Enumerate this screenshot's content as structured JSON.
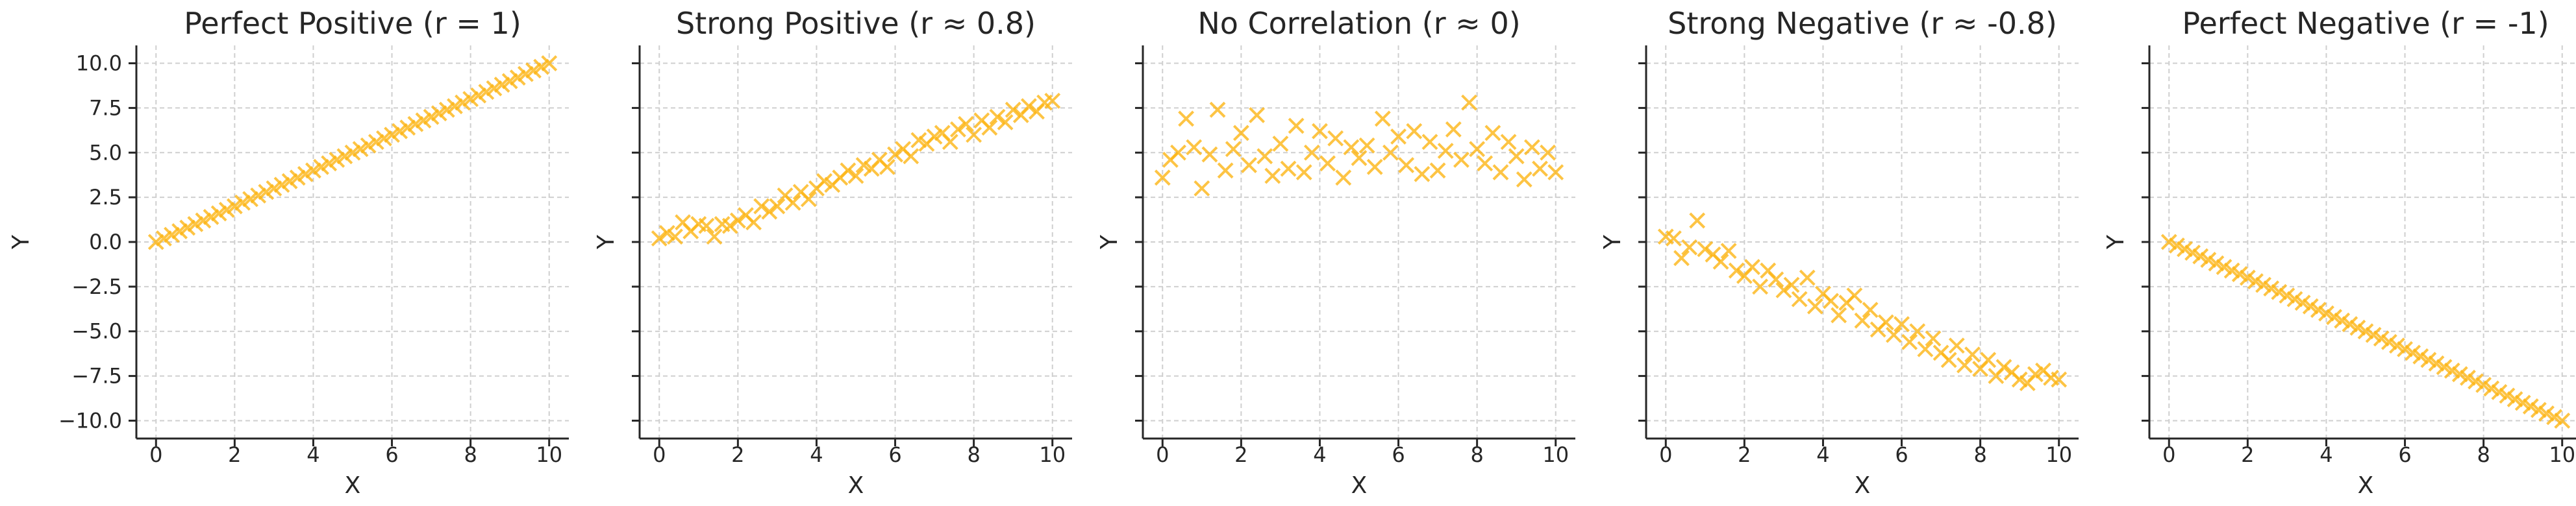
{
  "chart_data": [
    {
      "type": "scatter",
      "title": "Perfect Positive (r = 1)",
      "xlabel": "X",
      "ylabel": "Y",
      "xlim": [
        -0.5,
        10.5
      ],
      "ylim": [
        -11,
        11
      ],
      "xticks": [
        "0",
        "2",
        "4",
        "6",
        "8",
        "10"
      ],
      "yticks": [
        "10.0",
        "7.5",
        "5.0",
        "2.5",
        "0.0",
        "−2.5",
        "−5.0",
        "−7.5",
        "−10.0"
      ],
      "show_yticklabels": true,
      "marker": "x",
      "color": "#FDB515",
      "grid": true,
      "x": [
        0,
        0.2,
        0.4,
        0.6,
        0.8,
        1.0,
        1.2,
        1.4,
        1.6,
        1.8,
        2.0,
        2.2,
        2.4,
        2.6,
        2.8,
        3.0,
        3.2,
        3.4,
        3.6,
        3.8,
        4.0,
        4.2,
        4.4,
        4.6,
        4.8,
        5.0,
        5.2,
        5.4,
        5.6,
        5.8,
        6.0,
        6.2,
        6.4,
        6.6,
        6.8,
        7.0,
        7.2,
        7.4,
        7.6,
        7.8,
        8.0,
        8.2,
        8.4,
        8.6,
        8.8,
        9.0,
        9.2,
        9.4,
        9.6,
        9.8,
        10.0
      ],
      "y": [
        0,
        0.2,
        0.4,
        0.6,
        0.8,
        1.0,
        1.2,
        1.4,
        1.6,
        1.8,
        2.0,
        2.2,
        2.4,
        2.6,
        2.8,
        3.0,
        3.2,
        3.4,
        3.6,
        3.8,
        4.0,
        4.2,
        4.4,
        4.6,
        4.8,
        5.0,
        5.2,
        5.4,
        5.6,
        5.8,
        6.0,
        6.2,
        6.4,
        6.6,
        6.8,
        7.0,
        7.2,
        7.4,
        7.6,
        7.8,
        8.0,
        8.2,
        8.4,
        8.6,
        8.8,
        9.0,
        9.2,
        9.4,
        9.6,
        9.8,
        10.0
      ]
    },
    {
      "type": "scatter",
      "title": "Strong Positive (r ≈ 0.8)",
      "xlabel": "X",
      "ylabel": "Y",
      "xlim": [
        -0.5,
        10.5
      ],
      "ylim": [
        -11,
        11
      ],
      "xticks": [
        "0",
        "2",
        "4",
        "6",
        "8",
        "10"
      ],
      "yticks": [],
      "show_yticklabels": false,
      "marker": "x",
      "color": "#FDB515",
      "grid": true,
      "x": [
        0,
        0.2,
        0.4,
        0.6,
        0.8,
        1.0,
        1.2,
        1.4,
        1.6,
        1.8,
        2.0,
        2.2,
        2.4,
        2.6,
        2.8,
        3.0,
        3.2,
        3.4,
        3.6,
        3.8,
        4.0,
        4.2,
        4.4,
        4.6,
        4.8,
        5.0,
        5.2,
        5.4,
        5.6,
        5.8,
        6.0,
        6.2,
        6.4,
        6.6,
        6.8,
        7.0,
        7.2,
        7.4,
        7.6,
        7.8,
        8.0,
        8.2,
        8.4,
        8.6,
        8.8,
        9.0,
        9.2,
        9.4,
        9.6,
        9.8,
        10.0
      ],
      "y": [
        0.2,
        0.5,
        0.3,
        1.1,
        0.6,
        1.0,
        0.9,
        0.3,
        1.0,
        0.9,
        1.2,
        1.5,
        1.1,
        2.0,
        1.7,
        2.0,
        2.6,
        2.2,
        2.8,
        2.4,
        3.0,
        3.4,
        3.2,
        3.6,
        4.0,
        3.7,
        4.3,
        4.1,
        4.6,
        4.2,
        4.9,
        5.2,
        4.8,
        5.7,
        5.5,
        5.9,
        6.1,
        5.6,
        6.3,
        6.6,
        6.0,
        6.8,
        6.4,
        7.0,
        6.7,
        7.4,
        7.1,
        7.6,
        7.3,
        7.8,
        7.9
      ]
    },
    {
      "type": "scatter",
      "title": "No Correlation (r ≈ 0)",
      "xlabel": "X",
      "ylabel": "Y",
      "xlim": [
        -0.5,
        10.5
      ],
      "ylim": [
        -11,
        11
      ],
      "xticks": [
        "0",
        "2",
        "4",
        "6",
        "8",
        "10"
      ],
      "yticks": [],
      "show_yticklabels": false,
      "marker": "x",
      "color": "#FDB515",
      "grid": true,
      "x": [
        0,
        0.2,
        0.4,
        0.6,
        0.8,
        1.0,
        1.2,
        1.4,
        1.6,
        1.8,
        2.0,
        2.2,
        2.4,
        2.6,
        2.8,
        3.0,
        3.2,
        3.4,
        3.6,
        3.8,
        4.0,
        4.2,
        4.4,
        4.6,
        4.8,
        5.0,
        5.2,
        5.4,
        5.6,
        5.8,
        6.0,
        6.2,
        6.4,
        6.6,
        6.8,
        7.0,
        7.2,
        7.4,
        7.6,
        7.8,
        8.0,
        8.2,
        8.4,
        8.6,
        8.8,
        9.0,
        9.2,
        9.4,
        9.6,
        9.8,
        10.0
      ],
      "y": [
        3.6,
        4.6,
        5.0,
        6.9,
        5.3,
        3.0,
        4.9,
        7.4,
        4.0,
        5.2,
        6.1,
        4.3,
        7.1,
        4.8,
        3.7,
        5.5,
        4.1,
        6.5,
        3.9,
        5.0,
        6.2,
        4.4,
        5.8,
        3.6,
        5.3,
        4.7,
        5.4,
        4.2,
        6.9,
        5.0,
        5.9,
        4.3,
        6.2,
        3.8,
        5.6,
        4.0,
        5.1,
        6.3,
        4.6,
        7.8,
        5.2,
        4.4,
        6.1,
        3.9,
        5.6,
        4.8,
        3.5,
        5.3,
        4.1,
        5.0,
        3.9
      ]
    },
    {
      "type": "scatter",
      "title": "Strong Negative (r ≈ -0.8)",
      "xlabel": "X",
      "ylabel": "Y",
      "xlim": [
        -0.5,
        10.5
      ],
      "ylim": [
        -11,
        11
      ],
      "xticks": [
        "0",
        "2",
        "4",
        "6",
        "8",
        "10"
      ],
      "yticks": [],
      "show_yticklabels": false,
      "marker": "x",
      "color": "#FDB515",
      "grid": true,
      "x": [
        0,
        0.2,
        0.4,
        0.6,
        0.8,
        1.0,
        1.2,
        1.4,
        1.6,
        1.8,
        2.0,
        2.2,
        2.4,
        2.6,
        2.8,
        3.0,
        3.2,
        3.4,
        3.6,
        3.8,
        4.0,
        4.2,
        4.4,
        4.6,
        4.8,
        5.0,
        5.2,
        5.4,
        5.6,
        5.8,
        6.0,
        6.2,
        6.4,
        6.6,
        6.8,
        7.0,
        7.2,
        7.4,
        7.6,
        7.8,
        8.0,
        8.2,
        8.4,
        8.6,
        8.8,
        9.0,
        9.2,
        9.4,
        9.6,
        9.8,
        10.0
      ],
      "y": [
        0.3,
        0.2,
        -0.9,
        -0.3,
        1.2,
        -0.4,
        -0.7,
        -1.1,
        -0.5,
        -1.6,
        -1.9,
        -1.4,
        -2.5,
        -1.6,
        -2.1,
        -2.7,
        -2.4,
        -3.2,
        -2.0,
        -3.6,
        -2.9,
        -3.3,
        -4.1,
        -3.4,
        -3.0,
        -4.4,
        -3.8,
        -4.9,
        -4.5,
        -5.2,
        -4.6,
        -5.6,
        -5.0,
        -6.0,
        -5.4,
        -6.2,
        -6.6,
        -5.8,
        -6.9,
        -6.3,
        -7.1,
        -6.6,
        -7.5,
        -7.0,
        -7.3,
        -7.7,
        -7.9,
        -7.4,
        -7.2,
        -7.6,
        -7.7
      ]
    },
    {
      "type": "scatter",
      "title": "Perfect Negative (r = -1)",
      "xlabel": "X",
      "ylabel": "Y",
      "xlim": [
        -0.5,
        10.5
      ],
      "ylim": [
        -11,
        11
      ],
      "xticks": [
        "0",
        "2",
        "4",
        "6",
        "8",
        "10"
      ],
      "yticks": [],
      "show_yticklabels": false,
      "marker": "x",
      "color": "#FDB515",
      "grid": true,
      "x": [
        0,
        0.2,
        0.4,
        0.6,
        0.8,
        1.0,
        1.2,
        1.4,
        1.6,
        1.8,
        2.0,
        2.2,
        2.4,
        2.6,
        2.8,
        3.0,
        3.2,
        3.4,
        3.6,
        3.8,
        4.0,
        4.2,
        4.4,
        4.6,
        4.8,
        5.0,
        5.2,
        5.4,
        5.6,
        5.8,
        6.0,
        6.2,
        6.4,
        6.6,
        6.8,
        7.0,
        7.2,
        7.4,
        7.6,
        7.8,
        8.0,
        8.2,
        8.4,
        8.6,
        8.8,
        9.0,
        9.2,
        9.4,
        9.6,
        9.8,
        10.0
      ],
      "y": [
        0,
        -0.2,
        -0.4,
        -0.6,
        -0.8,
        -1.0,
        -1.2,
        -1.4,
        -1.6,
        -1.8,
        -2.0,
        -2.2,
        -2.4,
        -2.6,
        -2.8,
        -3.0,
        -3.2,
        -3.4,
        -3.6,
        -3.8,
        -4.0,
        -4.2,
        -4.4,
        -4.6,
        -4.8,
        -5.0,
        -5.2,
        -5.4,
        -5.6,
        -5.8,
        -6.0,
        -6.2,
        -6.4,
        -6.6,
        -6.8,
        -7.0,
        -7.2,
        -7.4,
        -7.6,
        -7.8,
        -8.0,
        -8.2,
        -8.4,
        -8.6,
        -8.8,
        -9.0,
        -9.2,
        -9.4,
        -9.6,
        -9.8,
        -10.0
      ]
    }
  ]
}
